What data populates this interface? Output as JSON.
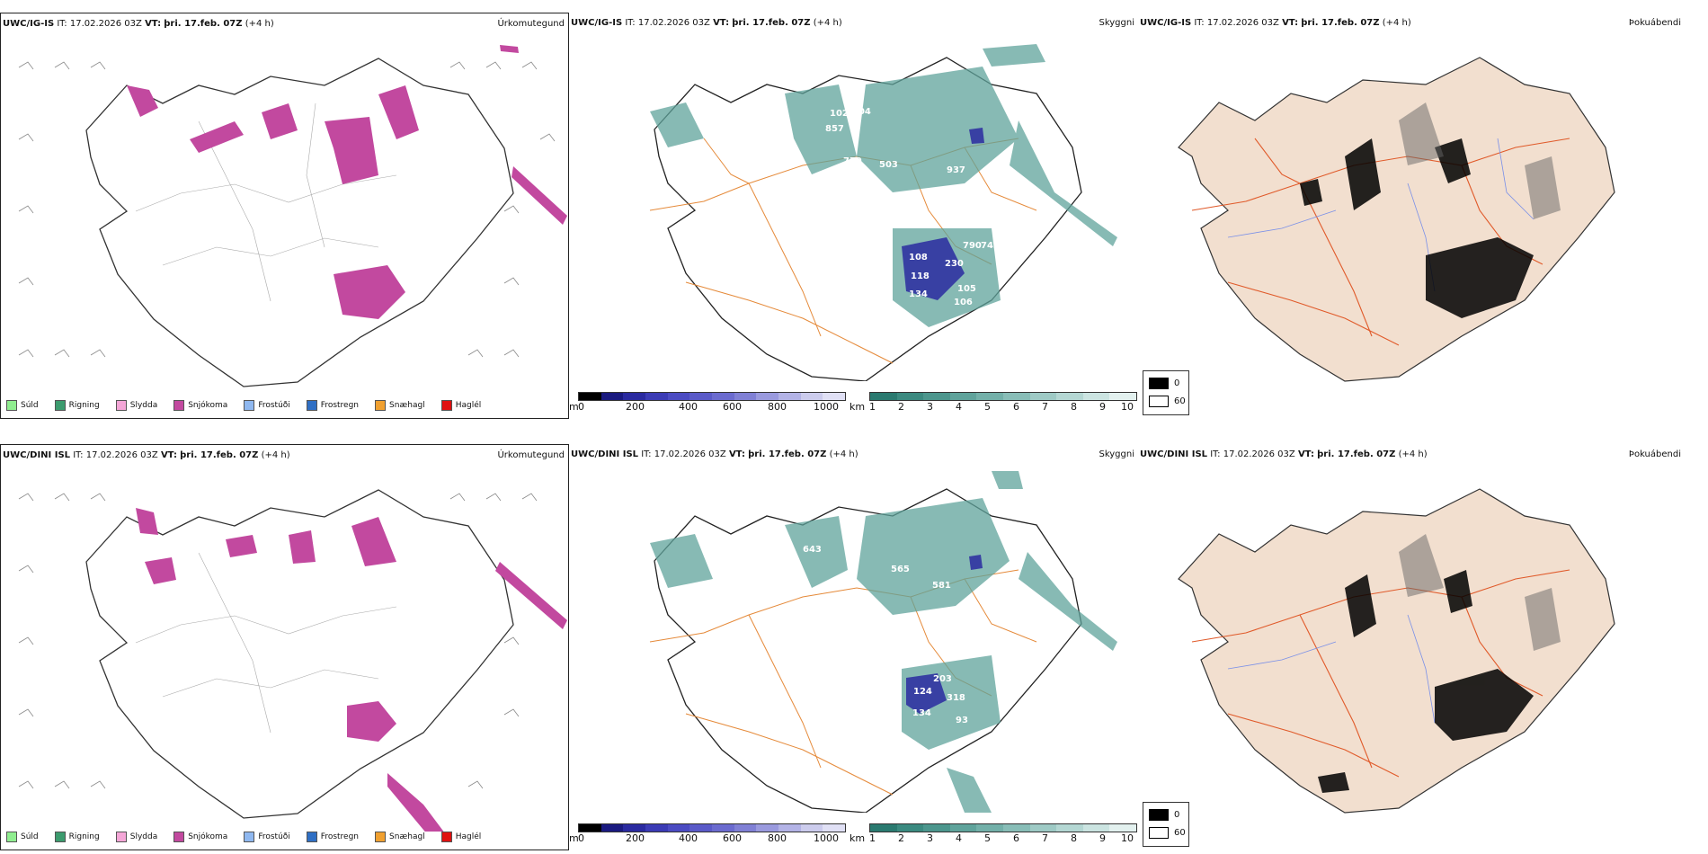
{
  "rows": [
    {
      "model": "UWC/IG-IS",
      "it_label": "IT:",
      "it_value": "17.02.2026 03Z",
      "vt_label": "VT:",
      "vt_value": "þri. 17.feb. 07Z",
      "lead": "(+4 h)",
      "labels": [
        "102",
        "704",
        "857",
        "779",
        "503",
        "937",
        "108",
        "230",
        "790",
        "742",
        "118",
        "134",
        "105",
        "106",
        "879"
      ]
    },
    {
      "model": "UWC/DINI ISL",
      "it_label": "IT:",
      "it_value": "17.02.2026 03Z",
      "vt_label": "VT:",
      "vt_value": "þri. 17.feb. 07Z",
      "lead": "(+4 h)",
      "labels": [
        "643",
        "565",
        "581",
        "203",
        "124",
        "318",
        "134",
        "93"
      ]
    }
  ],
  "panel_titles": {
    "precip": "Úrkomutegund",
    "cloud": "Skyggni",
    "fog": "Þokuábendi"
  },
  "precip_legend": [
    {
      "label": "Súld",
      "color": "#90ee90"
    },
    {
      "label": "Rigning",
      "color": "#3c9b6e"
    },
    {
      "label": "Slydda",
      "color": "#f4a6d7"
    },
    {
      "label": "Snjókoma",
      "color": "#c2499f"
    },
    {
      "label": "Frostúði",
      "color": "#8fb8f0"
    },
    {
      "label": "Frostregn",
      "color": "#2f6fc4"
    },
    {
      "label": "Snæhagl",
      "color": "#f0a030"
    },
    {
      "label": "Haglél",
      "color": "#e01010"
    }
  ],
  "cloud_base_bar": {
    "unit": "m",
    "ticks": [
      "0",
      "200",
      "400",
      "600",
      "800",
      "1000"
    ],
    "colors": [
      "#000000",
      "#1a1a80",
      "#2a2aa0",
      "#3b3bb5",
      "#4b4bc2",
      "#5a5ac8",
      "#6b6bcf",
      "#8080d5",
      "#9a9ade",
      "#b3b3e6",
      "#cccced",
      "#e0e0f5"
    ]
  },
  "visibility_bar": {
    "unit": "km",
    "ticks": [
      "1",
      "2",
      "3",
      "4",
      "5",
      "6",
      "7",
      "8",
      "9",
      "10"
    ],
    "colors": [
      "#2a7a70",
      "#3b8a80",
      "#4c968d",
      "#5fa39b",
      "#73b0a9",
      "#88bdb7",
      "#9ecac5",
      "#b4d7d3",
      "#cbe4e1",
      "#e3f1ef"
    ]
  },
  "fog_legend": {
    "high": "0",
    "low": "60"
  }
}
